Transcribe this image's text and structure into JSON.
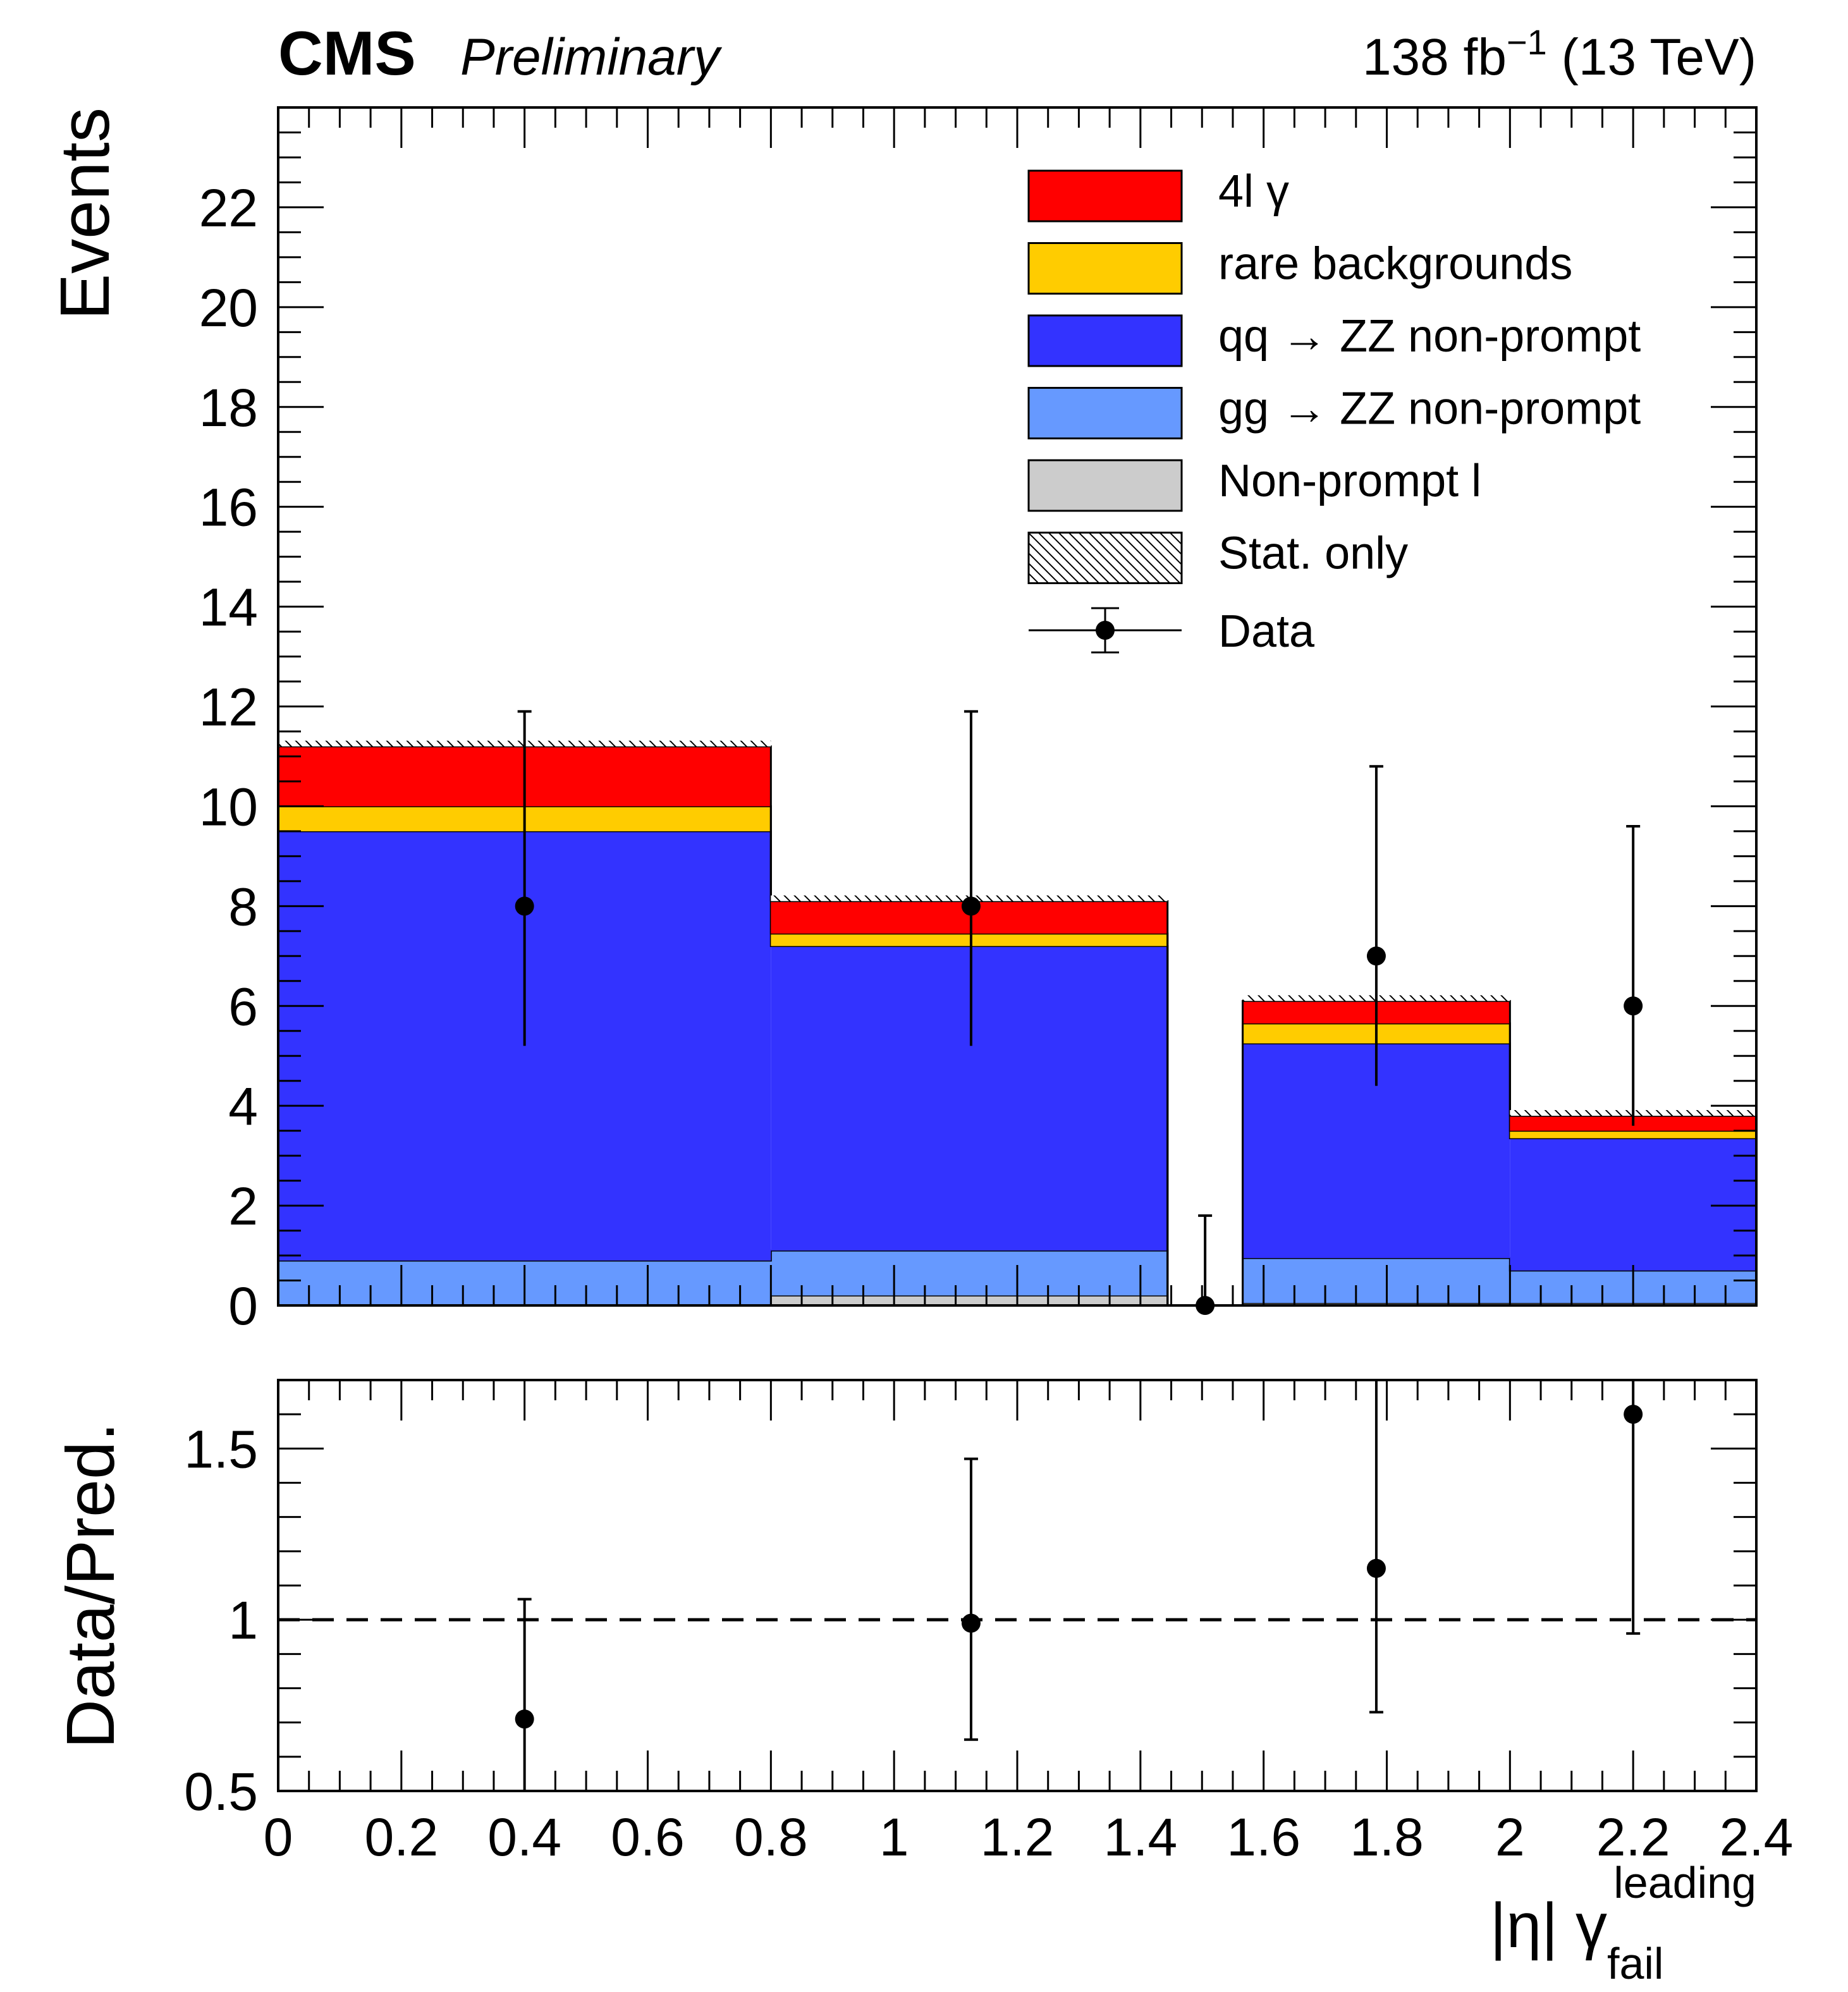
{
  "header": {
    "experiment": "CMS",
    "status": "Preliminary",
    "lumi_prefix": "138 fb",
    "lumi_exp": "−1",
    "lumi_suffix": " (13 TeV)"
  },
  "chart_data": [
    {
      "type": "bar",
      "stacked": true,
      "ylabel": "Events",
      "xlim": [
        0,
        2.4
      ],
      "ylim": [
        0,
        24
      ],
      "yticks": [
        0,
        2,
        4,
        6,
        8,
        10,
        12,
        14,
        16,
        18,
        20,
        22
      ],
      "bins": [
        [
          0,
          0.8
        ],
        [
          0.8,
          1.444
        ],
        [
          1.444,
          1.566
        ],
        [
          1.566,
          2.0
        ],
        [
          2.0,
          2.4
        ]
      ],
      "series": [
        {
          "name": "Non-prompt l",
          "color": "#cccccc",
          "values": [
            0.0,
            0.2,
            0.0,
            0.05,
            0.05
          ]
        },
        {
          "name": "gg → ZZ non-prompt",
          "color": "#6699ff",
          "values": [
            0.9,
            0.9,
            0.0,
            0.9,
            0.65
          ]
        },
        {
          "name": "qq → ZZ non-prompt",
          "color": "#3333ff",
          "values": [
            8.6,
            6.1,
            0.0,
            4.3,
            2.65
          ]
        },
        {
          "name": "rare backgrounds",
          "color": "#ffcc00",
          "values": [
            0.5,
            0.25,
            0.0,
            0.4,
            0.15
          ]
        },
        {
          "name": "4l γ",
          "color": "#ff0000",
          "values": [
            1.2,
            0.65,
            0.0,
            0.45,
            0.3
          ]
        }
      ],
      "stat_band": {
        "name": "Stat. only"
      },
      "data": {
        "name": "Data",
        "x": [
          0.4,
          1.125,
          1.505,
          1.783,
          2.2
        ],
        "y": [
          8,
          8,
          0,
          7,
          6
        ],
        "err_low": [
          2.8,
          2.8,
          0,
          2.6,
          2.4
        ],
        "err_high": [
          3.9,
          3.9,
          1.8,
          3.8,
          3.6
        ]
      }
    },
    {
      "type": "scatter",
      "ylabel": "Data/Pred.",
      "xlabel": "|η| γ",
      "xlabel_sup": "leading",
      "xlabel_sub": "fail",
      "xlim": [
        0,
        2.4
      ],
      "ylim": [
        0.5,
        1.7
      ],
      "xticks": [
        0,
        0.2,
        0.4,
        0.6,
        0.8,
        1,
        1.2,
        1.4,
        1.6,
        1.8,
        2,
        2.2,
        2.4
      ],
      "xtick_labels": [
        "0",
        "0.2",
        "0.4",
        "0.6",
        "0.8",
        "1",
        "1.2",
        "1.4",
        "1.6",
        "1.8",
        "2",
        "2.2",
        "2.4"
      ],
      "yticks": [
        0.5,
        1,
        1.5
      ],
      "ytick_labels": [
        "0.5",
        "1",
        "1.5"
      ],
      "reference_line": 1,
      "points": {
        "x": [
          0.4,
          1.125,
          1.783,
          2.2
        ],
        "y": [
          0.71,
          0.99,
          1.15,
          1.6
        ],
        "err_low": [
          0.21,
          0.34,
          0.42,
          0.64
        ],
        "err_high": [
          0.35,
          0.48,
          0.55,
          0.6
        ]
      }
    }
  ]
}
